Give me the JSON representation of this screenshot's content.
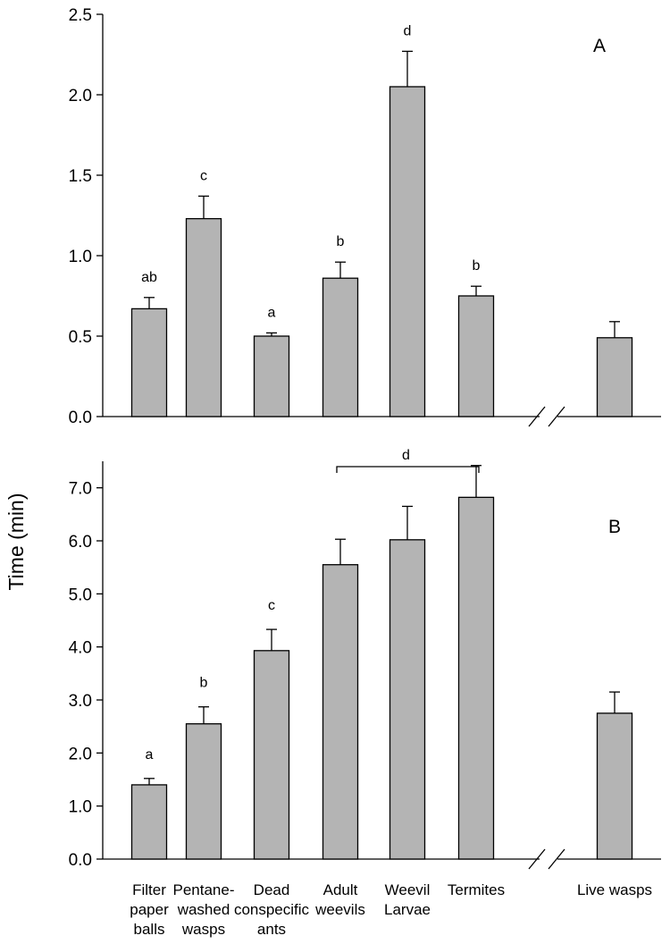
{
  "chart_data": [
    {
      "type": "bar",
      "panel": "A",
      "categories": [
        "Filter paper balls",
        "Pentane-washed wasps",
        "Dead conspecific ants",
        "Adult weevils",
        "Weevil Larvae",
        "Termites",
        "Live wasps"
      ],
      "values": [
        0.67,
        1.23,
        0.5,
        0.86,
        2.05,
        0.75,
        0.49
      ],
      "errors": [
        0.07,
        0.14,
        0.02,
        0.1,
        0.22,
        0.06,
        0.1
      ],
      "significance": [
        "ab",
        "c",
        "a",
        "b",
        "d",
        "b",
        ""
      ],
      "ylim": [
        0,
        2.5
      ],
      "yticks": [
        0.0,
        0.5,
        1.0,
        1.5,
        2.0,
        2.5
      ],
      "ytick_labels": [
        "0.0",
        "0.5",
        "1.0",
        "1.5",
        "2.0",
        "2.5"
      ],
      "axis_break": true
    },
    {
      "type": "bar",
      "panel": "B",
      "categories": [
        "Filter paper balls",
        "Pentane-washed wasps",
        "Dead conspecific ants",
        "Adult weevils",
        "Weevil Larvae",
        "Termites",
        "Live wasps"
      ],
      "values": [
        1.4,
        2.55,
        3.93,
        5.55,
        6.02,
        6.82,
        2.75
      ],
      "errors": [
        0.12,
        0.32,
        0.4,
        0.48,
        0.63,
        0.6,
        0.4
      ],
      "significance": [
        "a",
        "b",
        "c",
        "",
        "",
        "",
        ""
      ],
      "group_bracket": {
        "from": 3,
        "to": 5,
        "label": "d"
      },
      "ylim": [
        0,
        7.5
      ],
      "yticks": [
        0.0,
        1.0,
        2.0,
        3.0,
        4.0,
        5.0,
        6.0,
        7.0
      ],
      "ytick_labels": [
        "0.0",
        "1.0",
        "2.0",
        "3.0",
        "4.0",
        "5.0",
        "6.0",
        "7.0"
      ],
      "axis_break": true
    }
  ],
  "ylabel": "Time (min)",
  "xtick_labels": [
    [
      "Filter",
      "paper",
      "balls"
    ],
    [
      "Pentane-",
      "washed",
      "wasps"
    ],
    [
      "Dead",
      "conspecific",
      "ants"
    ],
    [
      "Adult",
      "weevils"
    ],
    [
      "Weevil",
      "Larvae"
    ],
    [
      "Termites"
    ],
    [
      "Live wasps"
    ]
  ]
}
